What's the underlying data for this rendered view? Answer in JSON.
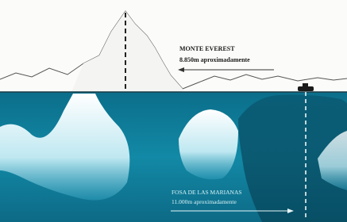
{
  "everest": {
    "title": "MONTE EVEREST",
    "height": "8.850m aproximadamente"
  },
  "trench": {
    "title": "FOSA DE LAS MARIANAS",
    "depth": "11.000m aproximadamente"
  }
}
